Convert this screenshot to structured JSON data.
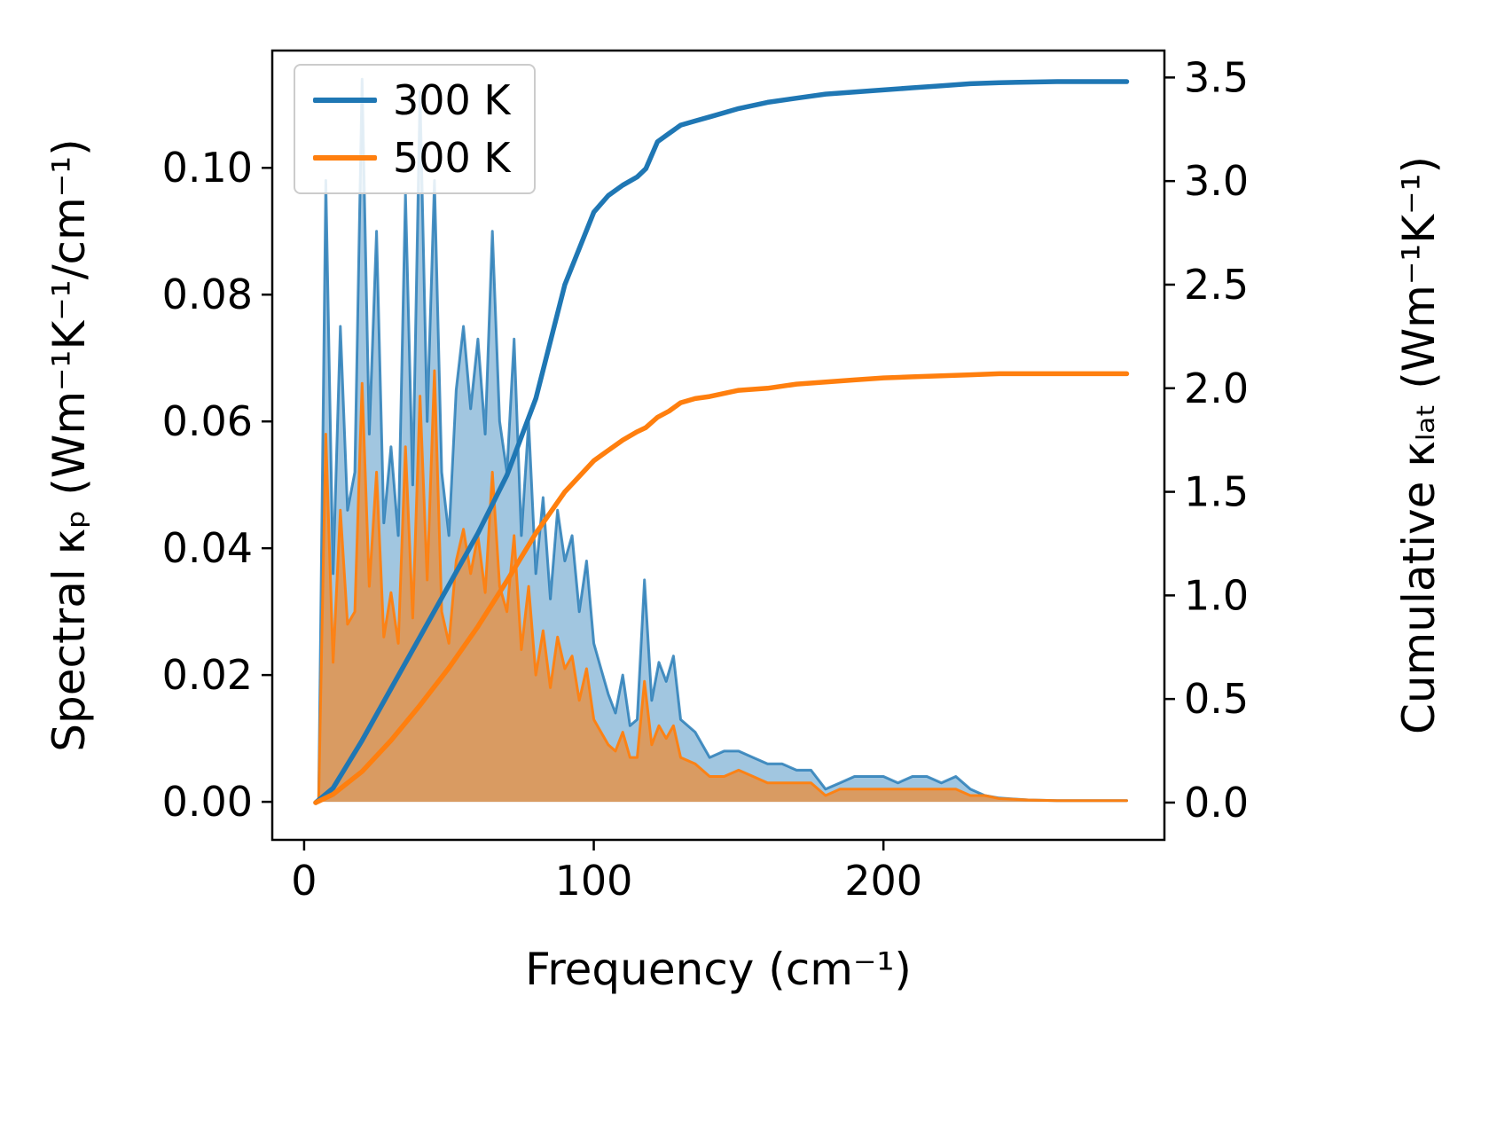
{
  "figure": {
    "background": "#ffffff",
    "xlabel": "Frequency (cm⁻¹)",
    "ylabel_left": "Spectral κₚ (Wm⁻¹K⁻¹/cm⁻¹)",
    "ylabel_right": "Cumulative κₗₐₜ (Wm⁻¹K⁻¹)"
  },
  "legend": {
    "entries": [
      {
        "label": "300 K",
        "color": "#1f77b4"
      },
      {
        "label": "500 K",
        "color": "#ff7f0e"
      }
    ]
  },
  "chart_data": {
    "type": "line",
    "title": "",
    "xlabel": "Frequency (cm⁻¹)",
    "ylabel_left": "Spectral κₚ (Wm⁻¹K⁻¹/cm⁻¹)",
    "ylabel_right": "Cumulative κₗₐₜ (Wm⁻¹K⁻¹)",
    "grid": false,
    "legend_position": "upper-left",
    "xlim": [
      -11,
      297
    ],
    "ylim_left": [
      -0.006,
      0.1185
    ],
    "ylim_right": [
      -0.18,
      3.63
    ],
    "xticks": {
      "values": [
        0,
        100,
        200
      ],
      "labels": [
        "0",
        "100",
        "200"
      ]
    },
    "yticks_left": {
      "values": [
        0,
        0.02,
        0.04,
        0.06,
        0.08,
        0.1
      ],
      "labels": [
        "0.00",
        "0.02",
        "0.04",
        "0.06",
        "0.08",
        "0.10"
      ]
    },
    "yticks_right": {
      "values": [
        0,
        0.5,
        1.0,
        1.5,
        2.0,
        2.5,
        3.0,
        3.5
      ],
      "labels": [
        "0.0",
        "0.5",
        "1.0",
        "1.5",
        "2.0",
        "2.5",
        "3.0",
        "3.5"
      ]
    },
    "spectral_x": [
      5,
      7.5,
      10,
      12.5,
      15,
      17.5,
      20,
      22.5,
      25,
      27.5,
      30,
      32.5,
      35,
      37.5,
      40,
      42.5,
      45,
      47.5,
      50,
      52.5,
      55,
      57.5,
      60,
      62.5,
      65,
      67.5,
      70,
      72.5,
      75,
      77.5,
      80,
      82.5,
      85,
      87.5,
      90,
      92.5,
      95,
      97.5,
      100,
      102.5,
      105,
      107.5,
      110,
      112.5,
      115,
      117.5,
      120,
      122.5,
      125,
      127.5,
      130,
      135,
      140,
      145,
      150,
      155,
      160,
      165,
      170,
      175,
      180,
      185,
      190,
      195,
      200,
      205,
      210,
      215,
      220,
      225,
      230,
      235,
      240,
      250,
      260,
      270,
      280,
      284
    ],
    "series": [
      {
        "name": "300 K spectral",
        "axis": "left",
        "kind": "area+line",
        "color": "#1f77b4",
        "fill_opacity": 0.42,
        "line_opacity": 0.8,
        "y": [
          0.0,
          0.098,
          0.036,
          0.075,
          0.046,
          0.052,
          0.114,
          0.058,
          0.09,
          0.044,
          0.056,
          0.042,
          0.096,
          0.05,
          0.112,
          0.06,
          0.098,
          0.052,
          0.042,
          0.065,
          0.075,
          0.062,
          0.073,
          0.058,
          0.09,
          0.06,
          0.052,
          0.073,
          0.042,
          0.06,
          0.036,
          0.048,
          0.032,
          0.046,
          0.038,
          0.042,
          0.03,
          0.038,
          0.025,
          0.021,
          0.017,
          0.014,
          0.02,
          0.012,
          0.013,
          0.035,
          0.016,
          0.022,
          0.019,
          0.023,
          0.013,
          0.011,
          0.007,
          0.008,
          0.008,
          0.007,
          0.006,
          0.006,
          0.005,
          0.005,
          0.002,
          0.003,
          0.004,
          0.004,
          0.004,
          0.003,
          0.004,
          0.004,
          0.003,
          0.004,
          0.002,
          0.001,
          0.0006,
          0.0003,
          0.0002,
          0.0002,
          0.0002,
          0.0002
        ]
      },
      {
        "name": "500 K spectral",
        "axis": "left",
        "kind": "area+line",
        "color": "#ff7f0e",
        "fill_opacity": 0.6,
        "line_opacity": 0.95,
        "y": [
          0.0,
          0.058,
          0.022,
          0.046,
          0.028,
          0.03,
          0.066,
          0.034,
          0.052,
          0.026,
          0.033,
          0.025,
          0.056,
          0.029,
          0.064,
          0.035,
          0.068,
          0.03,
          0.025,
          0.038,
          0.043,
          0.036,
          0.042,
          0.033,
          0.052,
          0.034,
          0.03,
          0.042,
          0.024,
          0.034,
          0.02,
          0.027,
          0.018,
          0.026,
          0.021,
          0.023,
          0.016,
          0.021,
          0.013,
          0.011,
          0.009,
          0.008,
          0.011,
          0.007,
          0.007,
          0.019,
          0.009,
          0.012,
          0.01,
          0.012,
          0.007,
          0.006,
          0.004,
          0.004,
          0.005,
          0.004,
          0.003,
          0.003,
          0.003,
          0.003,
          0.001,
          0.002,
          0.002,
          0.002,
          0.002,
          0.002,
          0.002,
          0.002,
          0.002,
          0.002,
          0.001,
          0.001,
          0.0005,
          0.0003,
          0.0002,
          0.0002,
          0.0002,
          0.0002
        ]
      },
      {
        "name": "300 K cumulative",
        "axis": "right",
        "kind": "line",
        "color": "#1f77b4",
        "x": [
          4,
          10,
          20,
          30,
          40,
          50,
          60,
          70,
          80,
          90,
          100,
          105,
          110,
          115,
          118,
          122,
          126,
          130,
          135,
          140,
          150,
          160,
          170,
          180,
          190,
          200,
          210,
          220,
          230,
          240,
          260,
          284
        ],
        "y": [
          0,
          0.07,
          0.3,
          0.55,
          0.8,
          1.05,
          1.3,
          1.58,
          1.95,
          2.5,
          2.85,
          2.93,
          2.98,
          3.02,
          3.06,
          3.19,
          3.23,
          3.27,
          3.29,
          3.31,
          3.35,
          3.38,
          3.4,
          3.42,
          3.43,
          3.44,
          3.45,
          3.46,
          3.47,
          3.475,
          3.48,
          3.48
        ]
      },
      {
        "name": "500 K cumulative",
        "axis": "right",
        "kind": "line",
        "color": "#ff7f0e",
        "x": [
          4,
          10,
          20,
          30,
          40,
          50,
          60,
          70,
          80,
          90,
          100,
          105,
          110,
          115,
          118,
          122,
          126,
          130,
          135,
          140,
          150,
          160,
          170,
          180,
          190,
          200,
          210,
          220,
          230,
          240,
          260,
          284
        ],
        "y": [
          0,
          0.04,
          0.15,
          0.3,
          0.47,
          0.65,
          0.85,
          1.07,
          1.3,
          1.5,
          1.65,
          1.7,
          1.75,
          1.79,
          1.81,
          1.86,
          1.89,
          1.93,
          1.95,
          1.96,
          1.99,
          2.0,
          2.02,
          2.03,
          2.04,
          2.05,
          2.055,
          2.06,
          2.065,
          2.07,
          2.07,
          2.07
        ]
      }
    ]
  }
}
